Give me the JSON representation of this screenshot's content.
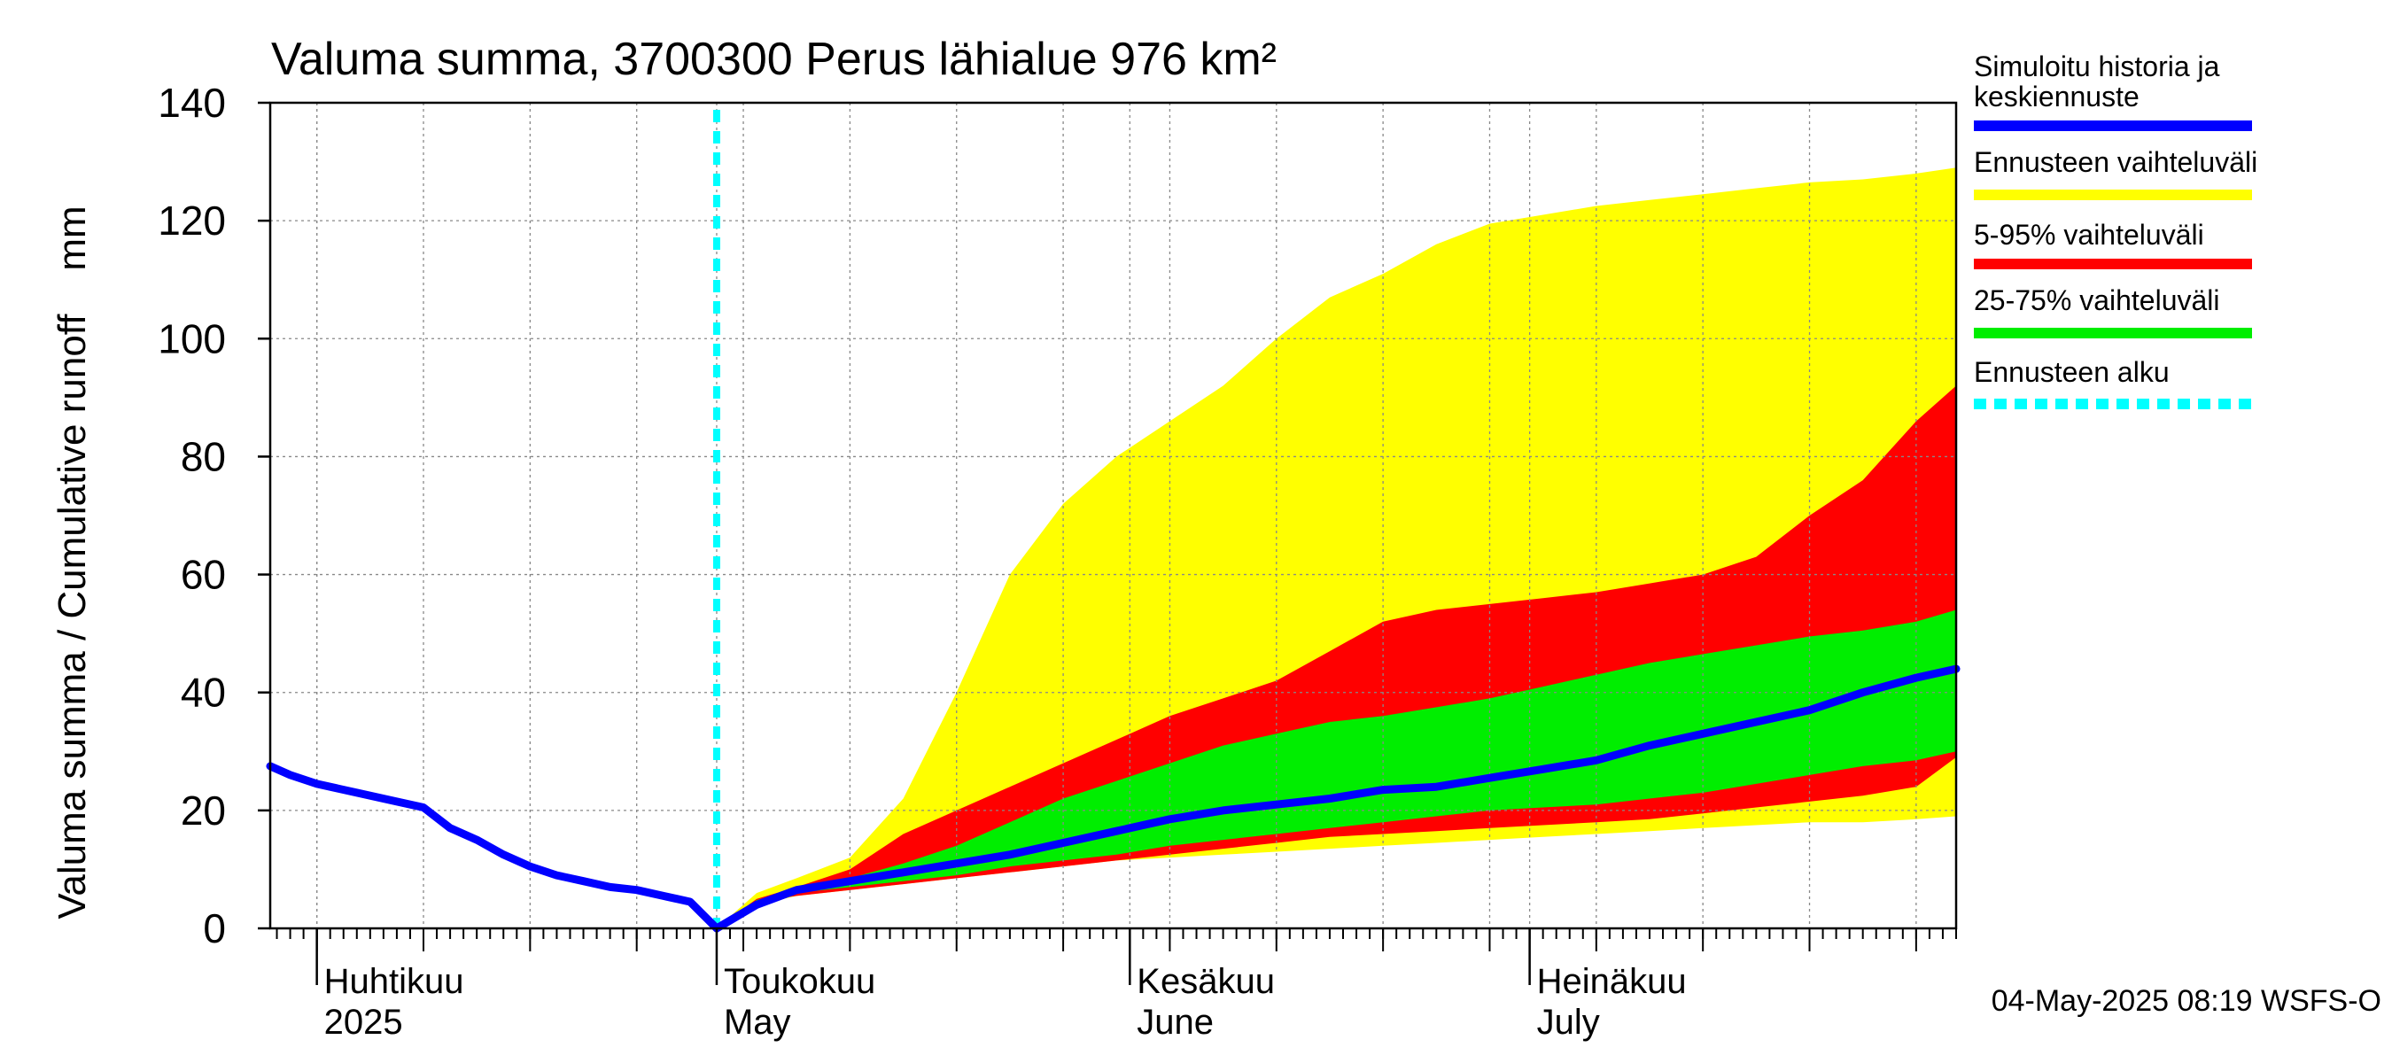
{
  "chart_data": {
    "type": "area",
    "title": "Valuma summa, 3700300 Perus lähialue 976 km²",
    "ylabel": "Valuma summa / Cumulative runoff    mm",
    "ylim": [
      0,
      140
    ],
    "yticks": [
      0,
      20,
      40,
      60,
      80,
      100,
      120,
      140
    ],
    "x_unit": "day of year 2025 (Apr 1 = day 0)",
    "xlim": [
      -3.5,
      123
    ],
    "month_labels": [
      {
        "line1": "Huhtikuu",
        "line2": "2025",
        "day": 0
      },
      {
        "line1": "Toukokuu",
        "line2": "May",
        "day": 30
      },
      {
        "line1": "Kesäkuu",
        "line2": "June",
        "day": 61
      },
      {
        "line1": "Heinäkuu",
        "line2": "July",
        "day": 91
      }
    ],
    "forecast_start_day": 30,
    "history": {
      "name": "Simuloitu historia ja keskiennuste",
      "x": [
        -3.5,
        -2,
        0,
        3,
        6,
        8,
        10,
        12,
        14,
        16,
        18,
        20,
        22,
        24,
        26,
        28,
        30
      ],
      "y": [
        27.5,
        26,
        24.5,
        23,
        21.5,
        20.5,
        17,
        15,
        12.5,
        10.5,
        9,
        8,
        7,
        6.5,
        5.5,
        4.5,
        0
      ]
    },
    "median": {
      "name": "Simuloitu historia ja keskiennuste",
      "x": [
        30,
        33,
        36,
        40,
        44,
        48,
        52,
        56,
        60,
        64,
        68,
        72,
        76,
        80,
        84,
        88,
        92,
        96,
        100,
        104,
        108,
        112,
        116,
        120,
        123
      ],
      "y": [
        0,
        4,
        6.5,
        8,
        9.5,
        11,
        12.5,
        14.5,
        16.5,
        18.5,
        20,
        21,
        22,
        23.5,
        24,
        25.5,
        27,
        28.5,
        31,
        33,
        35,
        37,
        40,
        42.5,
        44
      ]
    },
    "bands_x": [
      30,
      33,
      36,
      40,
      44,
      48,
      52,
      56,
      60,
      64,
      68,
      72,
      76,
      80,
      84,
      88,
      92,
      96,
      100,
      104,
      108,
      112,
      116,
      120,
      123
    ],
    "band_full": {
      "name": "Ennusteen vaihteluväli",
      "low": [
        0,
        4,
        5.5,
        6.5,
        7.5,
        8.5,
        9.5,
        10.5,
        11.5,
        12,
        12.5,
        13,
        13.5,
        14,
        14.5,
        15,
        15.5,
        16,
        16.5,
        17,
        17.5,
        18,
        18,
        18.5,
        19
      ],
      "high": [
        0,
        6,
        8.5,
        12,
        22,
        40,
        60,
        72,
        80,
        86,
        92,
        100,
        107,
        111,
        116,
        119.5,
        121,
        122.5,
        123.5,
        124.5,
        125.5,
        126.5,
        127,
        128,
        129
      ]
    },
    "band_5_95": {
      "name": "5-95% vaihteluväli",
      "low": [
        0,
        4.5,
        5.5,
        6.5,
        7.5,
        8.5,
        9.5,
        10.5,
        11.5,
        12.5,
        13.5,
        14.5,
        15.5,
        16,
        16.5,
        17,
        17.5,
        18,
        18.5,
        19.5,
        20.5,
        21.5,
        22.5,
        24,
        29
      ],
      "high": [
        0,
        5,
        7,
        10,
        16,
        20,
        24,
        28,
        32,
        36,
        39,
        42,
        47,
        52,
        54,
        55,
        56,
        57,
        58.5,
        60,
        63,
        70,
        76,
        86,
        92
      ]
    },
    "band_25_75": {
      "name": "25-75% vaihteluväli",
      "low": [
        0,
        4.5,
        6,
        7,
        8,
        9,
        10.5,
        11.5,
        12.5,
        14,
        15,
        16,
        17,
        18,
        19,
        20,
        20.5,
        21,
        22,
        23,
        24.5,
        26,
        27.5,
        28.5,
        30
      ],
      "high": [
        0,
        4.8,
        6.5,
        8.5,
        11,
        14,
        18,
        22,
        25,
        28,
        31,
        33,
        35,
        36,
        37.5,
        39,
        41,
        43,
        45,
        46.5,
        48,
        49.5,
        50.5,
        52,
        54
      ]
    },
    "legend": {
      "placement": "right",
      "entries": [
        {
          "label_line1": "Simuloitu historia ja",
          "label_line2": "keskiennuste",
          "color": "#0000ff",
          "style": "solid"
        },
        {
          "label_line1": "Ennusteen vaihteluväli",
          "color": "#ffff00",
          "style": "solid"
        },
        {
          "label_line1": "5-95% vaihteluväli",
          "color": "#ff0000",
          "style": "solid"
        },
        {
          "label_line1": "25-75% vaihteluväli",
          "color": "#00ee00",
          "style": "solid"
        },
        {
          "label_line1": "Ennusteen alku",
          "color": "#00ffff",
          "style": "dashed"
        }
      ]
    },
    "colors": {
      "history": "#0000ff",
      "band_full": "#ffff00",
      "band_5_95": "#ff0000",
      "band_25_75": "#00ee00",
      "forecast_start": "#00ffff",
      "grid": "#888888"
    },
    "grid": true,
    "footer": "04-May-2025 08:19 WSFS-O"
  }
}
